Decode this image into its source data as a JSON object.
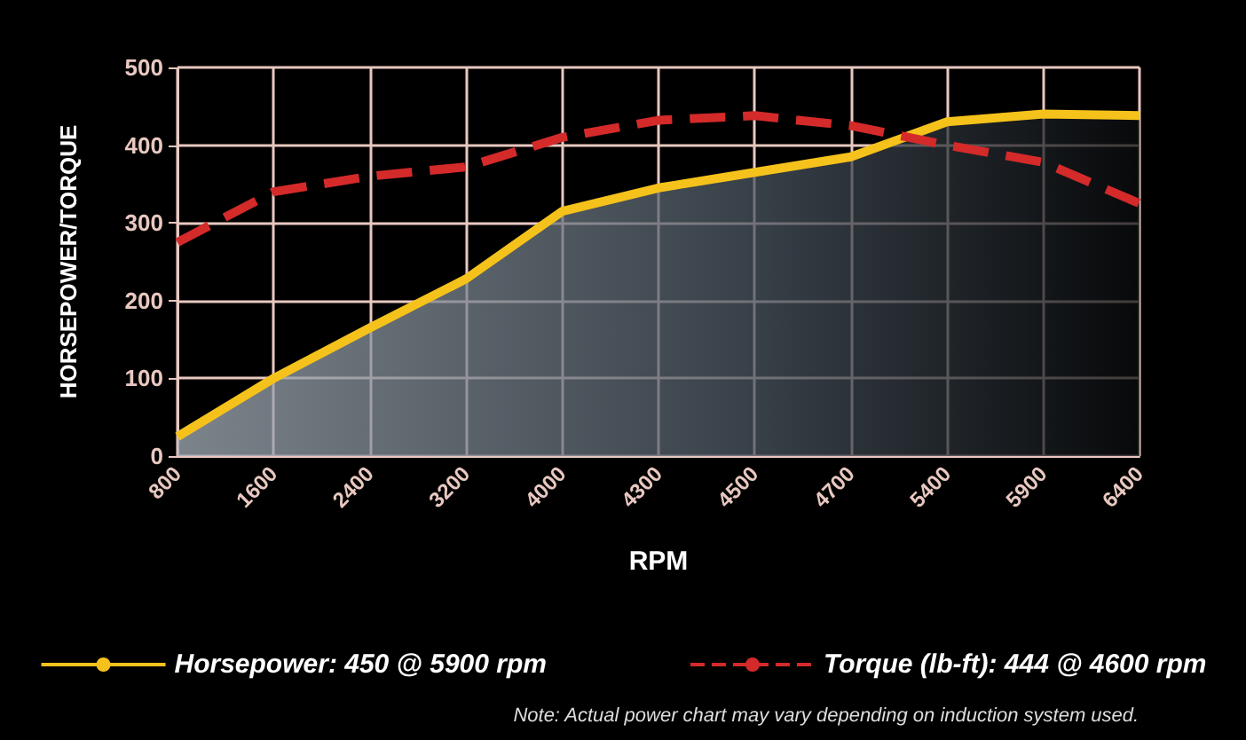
{
  "chart_data": {
    "type": "line",
    "xlabel": "RPM",
    "ylabel": "HORSEPOWER/TORQUE",
    "categories": [
      "800",
      "1600",
      "2400",
      "3200",
      "4000",
      "4300",
      "4500",
      "4700",
      "5400",
      "5900",
      "6400"
    ],
    "series": [
      {
        "name": "Horsepower: 450 @ 5900 rpm",
        "type": "area",
        "color": "#f5c21b",
        "line_style": "solid",
        "values": [
          25,
          100,
          165,
          228,
          315,
          345,
          365,
          385,
          430,
          440,
          438
        ]
      },
      {
        "name": "Torque (lb-ft): 444 @ 4600 rpm",
        "type": "line",
        "color": "#d42a2a",
        "line_style": "dashed",
        "values": [
          275,
          340,
          360,
          372,
          410,
          432,
          438,
          425,
          400,
          378,
          325
        ]
      }
    ],
    "ylim": [
      0,
      500
    ],
    "yticks": [
      0,
      100,
      200,
      300,
      400,
      500
    ],
    "grid": true,
    "legend": "bottom",
    "marker": "none",
    "annotations": [
      "Note: Actual power chart may vary depending on induction system used."
    ]
  }
}
